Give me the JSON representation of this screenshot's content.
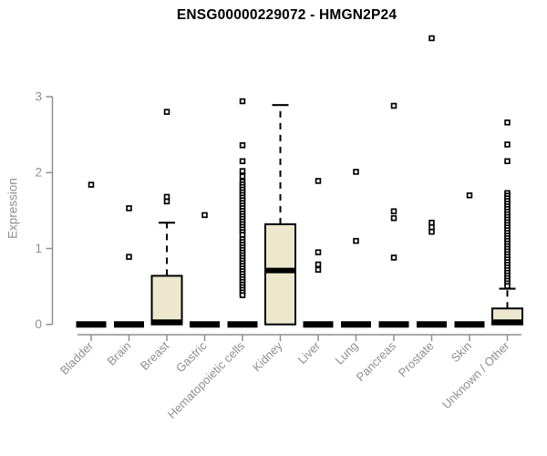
{
  "title": "ENSG00000229072 - HMGN2P24",
  "chart_data": {
    "type": "boxplot",
    "title": "ENSG00000229072 - HMGN2P24",
    "xlabel": "",
    "ylabel": "Expression",
    "ylim": [
      0,
      3
    ],
    "yticks": [
      0,
      1,
      2,
      3
    ],
    "grid": false,
    "legend": false,
    "colors": {
      "box_fill": "#EDE8CD",
      "box_stroke": "#000000",
      "outlier_stroke": "#000000",
      "axis": "#8f8f8f",
      "tick_label": "#8f8f8f",
      "title": "#000000"
    },
    "categories": [
      "Bladder",
      "Brain",
      "Breast",
      "Gastric",
      "Hematopoietic cells",
      "Kidney",
      "Liver",
      "Lung",
      "Pancreas",
      "Prostate",
      "Skin",
      "Unknown / Other"
    ],
    "boxes": [
      {
        "category": "Bladder",
        "q1": 0,
        "median": 0,
        "q3": 0,
        "whisker_low": 0,
        "whisker_high": 0,
        "outliers": [
          1.84
        ]
      },
      {
        "category": "Brain",
        "q1": 0,
        "median": 0,
        "q3": 0,
        "whisker_low": 0,
        "whisker_high": 0,
        "outliers": [
          1.53,
          0.89
        ]
      },
      {
        "category": "Breast",
        "q1": 0,
        "median": 0.03,
        "q3": 0.64,
        "whisker_low": 0,
        "whisker_high": 1.34,
        "outliers": [
          2.8,
          1.68,
          1.62
        ]
      },
      {
        "category": "Gastric",
        "q1": 0,
        "median": 0,
        "q3": 0,
        "whisker_low": 0,
        "whisker_high": 0,
        "outliers": [
          1.44
        ]
      },
      {
        "category": "Hematopoietic cells",
        "q1": 0,
        "median": 0,
        "q3": 0,
        "whisker_low": 0,
        "whisker_high": 0,
        "outliers": [
          2.94,
          2.36,
          2.15,
          2.02,
          1.95,
          1.88,
          1.845,
          1.81,
          1.775,
          1.74,
          1.705,
          1.67,
          1.635,
          1.6,
          1.565,
          1.53,
          1.495,
          1.46,
          1.425,
          1.39,
          1.355,
          1.32,
          1.285,
          1.25,
          1.215,
          1.18,
          1.12,
          1.085,
          1.05,
          1.015,
          0.98,
          0.945,
          0.91,
          0.875,
          0.84,
          0.805,
          0.77,
          0.735,
          0.7,
          0.665,
          0.63,
          0.595,
          0.56,
          0.525,
          0.49,
          0.455,
          0.42,
          0.385
        ]
      },
      {
        "category": "Kidney",
        "q1": 0,
        "median": 0.71,
        "q3": 1.32,
        "whisker_low": 0,
        "whisker_high": 2.89,
        "outliers": []
      },
      {
        "category": "Liver",
        "q1": 0,
        "median": 0,
        "q3": 0,
        "whisker_low": 0,
        "whisker_high": 0,
        "outliers": [
          1.89,
          0.95,
          0.79,
          0.72
        ]
      },
      {
        "category": "Lung",
        "q1": 0,
        "median": 0,
        "q3": 0,
        "whisker_low": 0,
        "whisker_high": 0,
        "outliers": [
          2.01,
          1.1
        ]
      },
      {
        "category": "Pancreas",
        "q1": 0,
        "median": 0,
        "q3": 0,
        "whisker_low": 0,
        "whisker_high": 0,
        "outliers": [
          2.88,
          1.49,
          1.4,
          0.88
        ]
      },
      {
        "category": "Prostate",
        "q1": 0,
        "median": 0,
        "q3": 0,
        "whisker_low": 0,
        "whisker_high": 0,
        "outliers": [
          3.77,
          1.34,
          1.28,
          1.22
        ]
      },
      {
        "category": "Skin",
        "q1": 0,
        "median": 0,
        "q3": 0,
        "whisker_low": 0,
        "whisker_high": 0,
        "outliers": [
          1.7
        ]
      },
      {
        "category": "Unknown / Other",
        "q1": 0,
        "median": 0.03,
        "q3": 0.21,
        "whisker_low": 0,
        "whisker_high": 0.47,
        "outliers": [
          2.66,
          2.37,
          2.15,
          1.73,
          1.695,
          1.66,
          1.625,
          1.59,
          1.555,
          1.52,
          1.485,
          1.45,
          1.415,
          1.38,
          1.345,
          1.31,
          1.275,
          1.24,
          1.205,
          1.17,
          1.135,
          1.1,
          1.065,
          1.03,
          0.995,
          0.96,
          0.925,
          0.89,
          0.855,
          0.82,
          0.785,
          0.75,
          0.715,
          0.68,
          0.645,
          0.61,
          0.575,
          0.54,
          0.505
        ]
      }
    ]
  }
}
